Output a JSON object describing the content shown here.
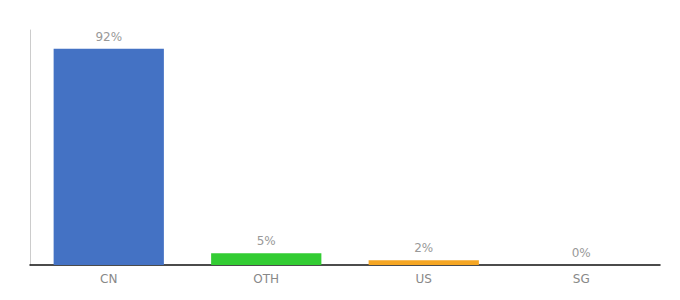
{
  "chart_data": {
    "type": "bar",
    "categories": [
      "CN",
      "OTH",
      "US",
      "SG"
    ],
    "values": [
      92,
      5,
      2,
      0
    ],
    "value_labels": [
      "92%",
      "5%",
      "2%",
      "0%"
    ],
    "colors": [
      "#4472c4",
      "#33cc33",
      "#f5a623",
      "#aaaaaa"
    ],
    "ylim": [
      0,
      100
    ],
    "grid": false,
    "tick_labels": "x",
    "data_labels": true
  }
}
